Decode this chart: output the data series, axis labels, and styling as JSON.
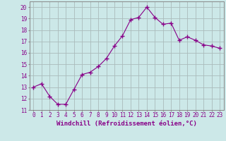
{
  "x": [
    0,
    1,
    2,
    3,
    4,
    5,
    6,
    7,
    8,
    9,
    10,
    11,
    12,
    13,
    14,
    15,
    16,
    17,
    18,
    19,
    20,
    21,
    22,
    23
  ],
  "y": [
    13.0,
    13.3,
    12.2,
    11.5,
    11.5,
    12.8,
    14.1,
    14.3,
    14.8,
    15.5,
    16.6,
    17.5,
    18.9,
    19.1,
    20.0,
    19.1,
    18.5,
    18.6,
    17.1,
    17.4,
    17.1,
    16.7,
    16.6,
    16.4
  ],
  "line_color": "#880088",
  "marker": "+",
  "marker_size": 4,
  "bg_color": "#cce8e8",
  "grid_color": "#aabbbb",
  "xlabel": "Windchill (Refroidissement éolien,°C)",
  "ylim": [
    11,
    20.5
  ],
  "xlim": [
    -0.5,
    23.5
  ],
  "yticks": [
    11,
    12,
    13,
    14,
    15,
    16,
    17,
    18,
    19,
    20
  ],
  "xticks": [
    0,
    1,
    2,
    3,
    4,
    5,
    6,
    7,
    8,
    9,
    10,
    11,
    12,
    13,
    14,
    15,
    16,
    17,
    18,
    19,
    20,
    21,
    22,
    23
  ],
  "tick_fontsize": 5.5,
  "xlabel_fontsize": 6.5,
  "spine_color": "#888888"
}
